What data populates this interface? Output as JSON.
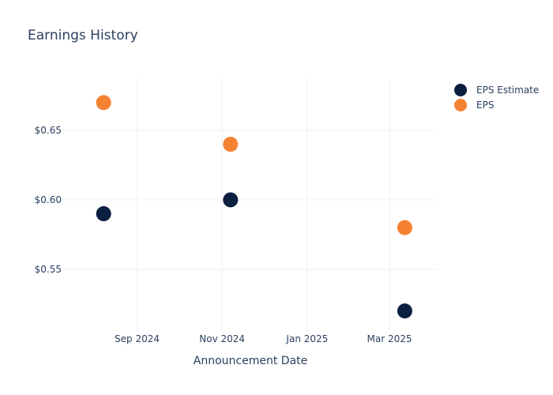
{
  "chart_data": {
    "type": "scatter",
    "title": "Earnings History",
    "xlabel": "Announcement Date",
    "ylabel": "",
    "x_axis_type": "date",
    "xlim": [
      "2024-07-10",
      "2025-04-04"
    ],
    "ylim": [
      0.505,
      0.687
    ],
    "x_ticks": [
      {
        "value": "2024-09-01",
        "label": "Sep 2024"
      },
      {
        "value": "2024-11-01",
        "label": "Nov 2024"
      },
      {
        "value": "2025-01-01",
        "label": "Jan 2025"
      },
      {
        "value": "2025-03-01",
        "label": "Mar 2025"
      }
    ],
    "y_ticks": [
      {
        "value": 0.55,
        "label": "$0.55"
      },
      {
        "value": 0.6,
        "label": "$0.60"
      },
      {
        "value": 0.65,
        "label": "$0.65"
      }
    ],
    "grid": true,
    "legend_position": "top-right",
    "series": [
      {
        "name": "EPS Estimate",
        "color": "#0b1f40",
        "points": [
          {
            "x": "2024-08-08",
            "y": 0.59
          },
          {
            "x": "2024-11-07",
            "y": 0.6
          },
          {
            "x": "2025-03-12",
            "y": 0.52
          }
        ]
      },
      {
        "name": "EPS",
        "color": "#f58232",
        "points": [
          {
            "x": "2024-08-08",
            "y": 0.67
          },
          {
            "x": "2024-11-07",
            "y": 0.64
          },
          {
            "x": "2025-03-12",
            "y": 0.58
          }
        ]
      }
    ]
  }
}
